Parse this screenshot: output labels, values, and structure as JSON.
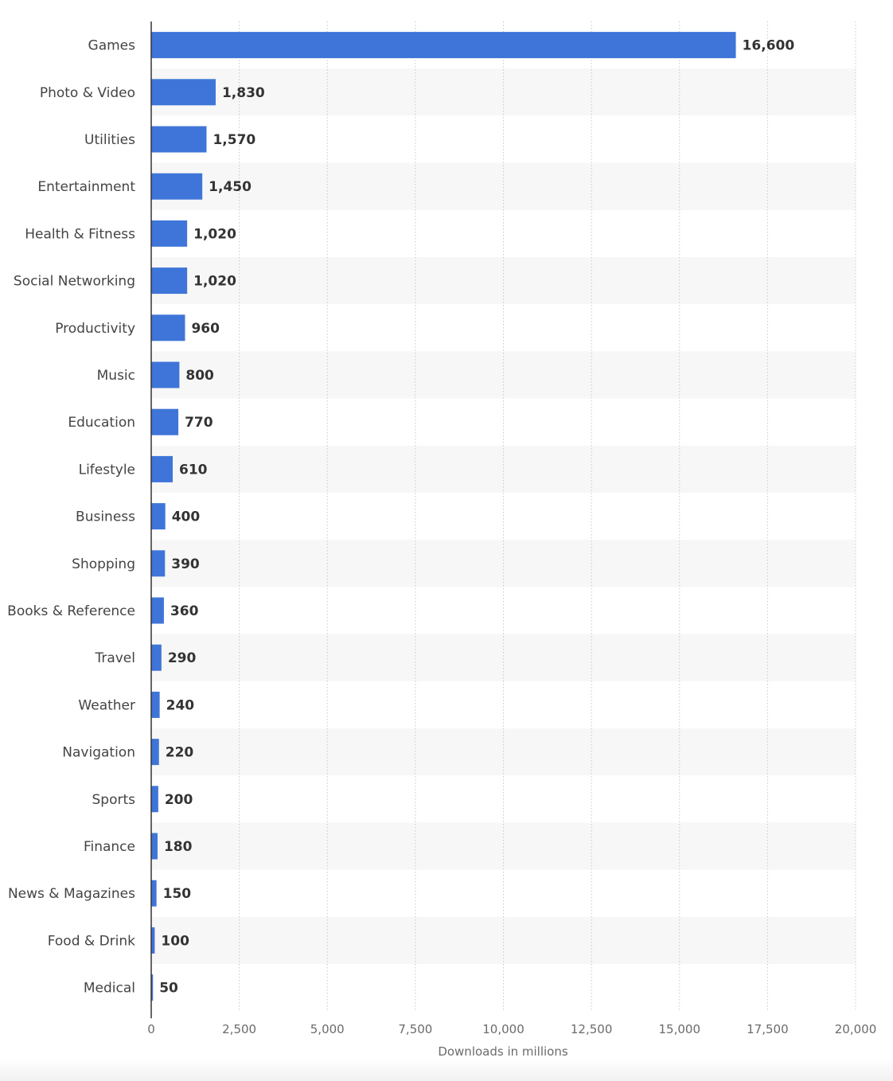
{
  "chart_data": {
    "type": "bar",
    "orientation": "horizontal",
    "categories": [
      "Games",
      "Photo & Video",
      "Utilities",
      "Entertainment",
      "Health & Fitness",
      "Social Networking",
      "Productivity",
      "Music",
      "Education",
      "Lifestyle",
      "Business",
      "Shopping",
      "Books & Reference",
      "Travel",
      "Weather",
      "Navigation",
      "Sports",
      "Finance",
      "News & Magazines",
      "Food & Drink",
      "Medical"
    ],
    "values": [
      16600,
      1830,
      1570,
      1450,
      1020,
      1020,
      960,
      800,
      770,
      610,
      400,
      390,
      360,
      290,
      240,
      220,
      200,
      180,
      150,
      100,
      50
    ],
    "value_labels": [
      "16,600",
      "1,830",
      "1,570",
      "1,450",
      "1,020",
      "1,020",
      "960",
      "800",
      "770",
      "610",
      "400",
      "390",
      "360",
      "290",
      "240",
      "220",
      "200",
      "180",
      "150",
      "100",
      "50"
    ],
    "title": "",
    "xlabel": "Downloads in millions",
    "ylabel": "",
    "xlim": [
      0,
      20000
    ],
    "x_ticks": [
      0,
      2500,
      5000,
      7500,
      10000,
      12500,
      15000,
      17500,
      20000
    ],
    "x_tick_labels": [
      "0",
      "2,500",
      "5,000",
      "7,500",
      "10,000",
      "12,500",
      "15,000",
      "17,500",
      "20,000"
    ],
    "grid": true,
    "grid_style": "dotted vertical",
    "row_banding": true,
    "legend": "none",
    "colors": {
      "bar": "#3f75d8",
      "band": "#f7f7f7",
      "grid": "#c8c8c8",
      "axis": "#333333"
    }
  }
}
